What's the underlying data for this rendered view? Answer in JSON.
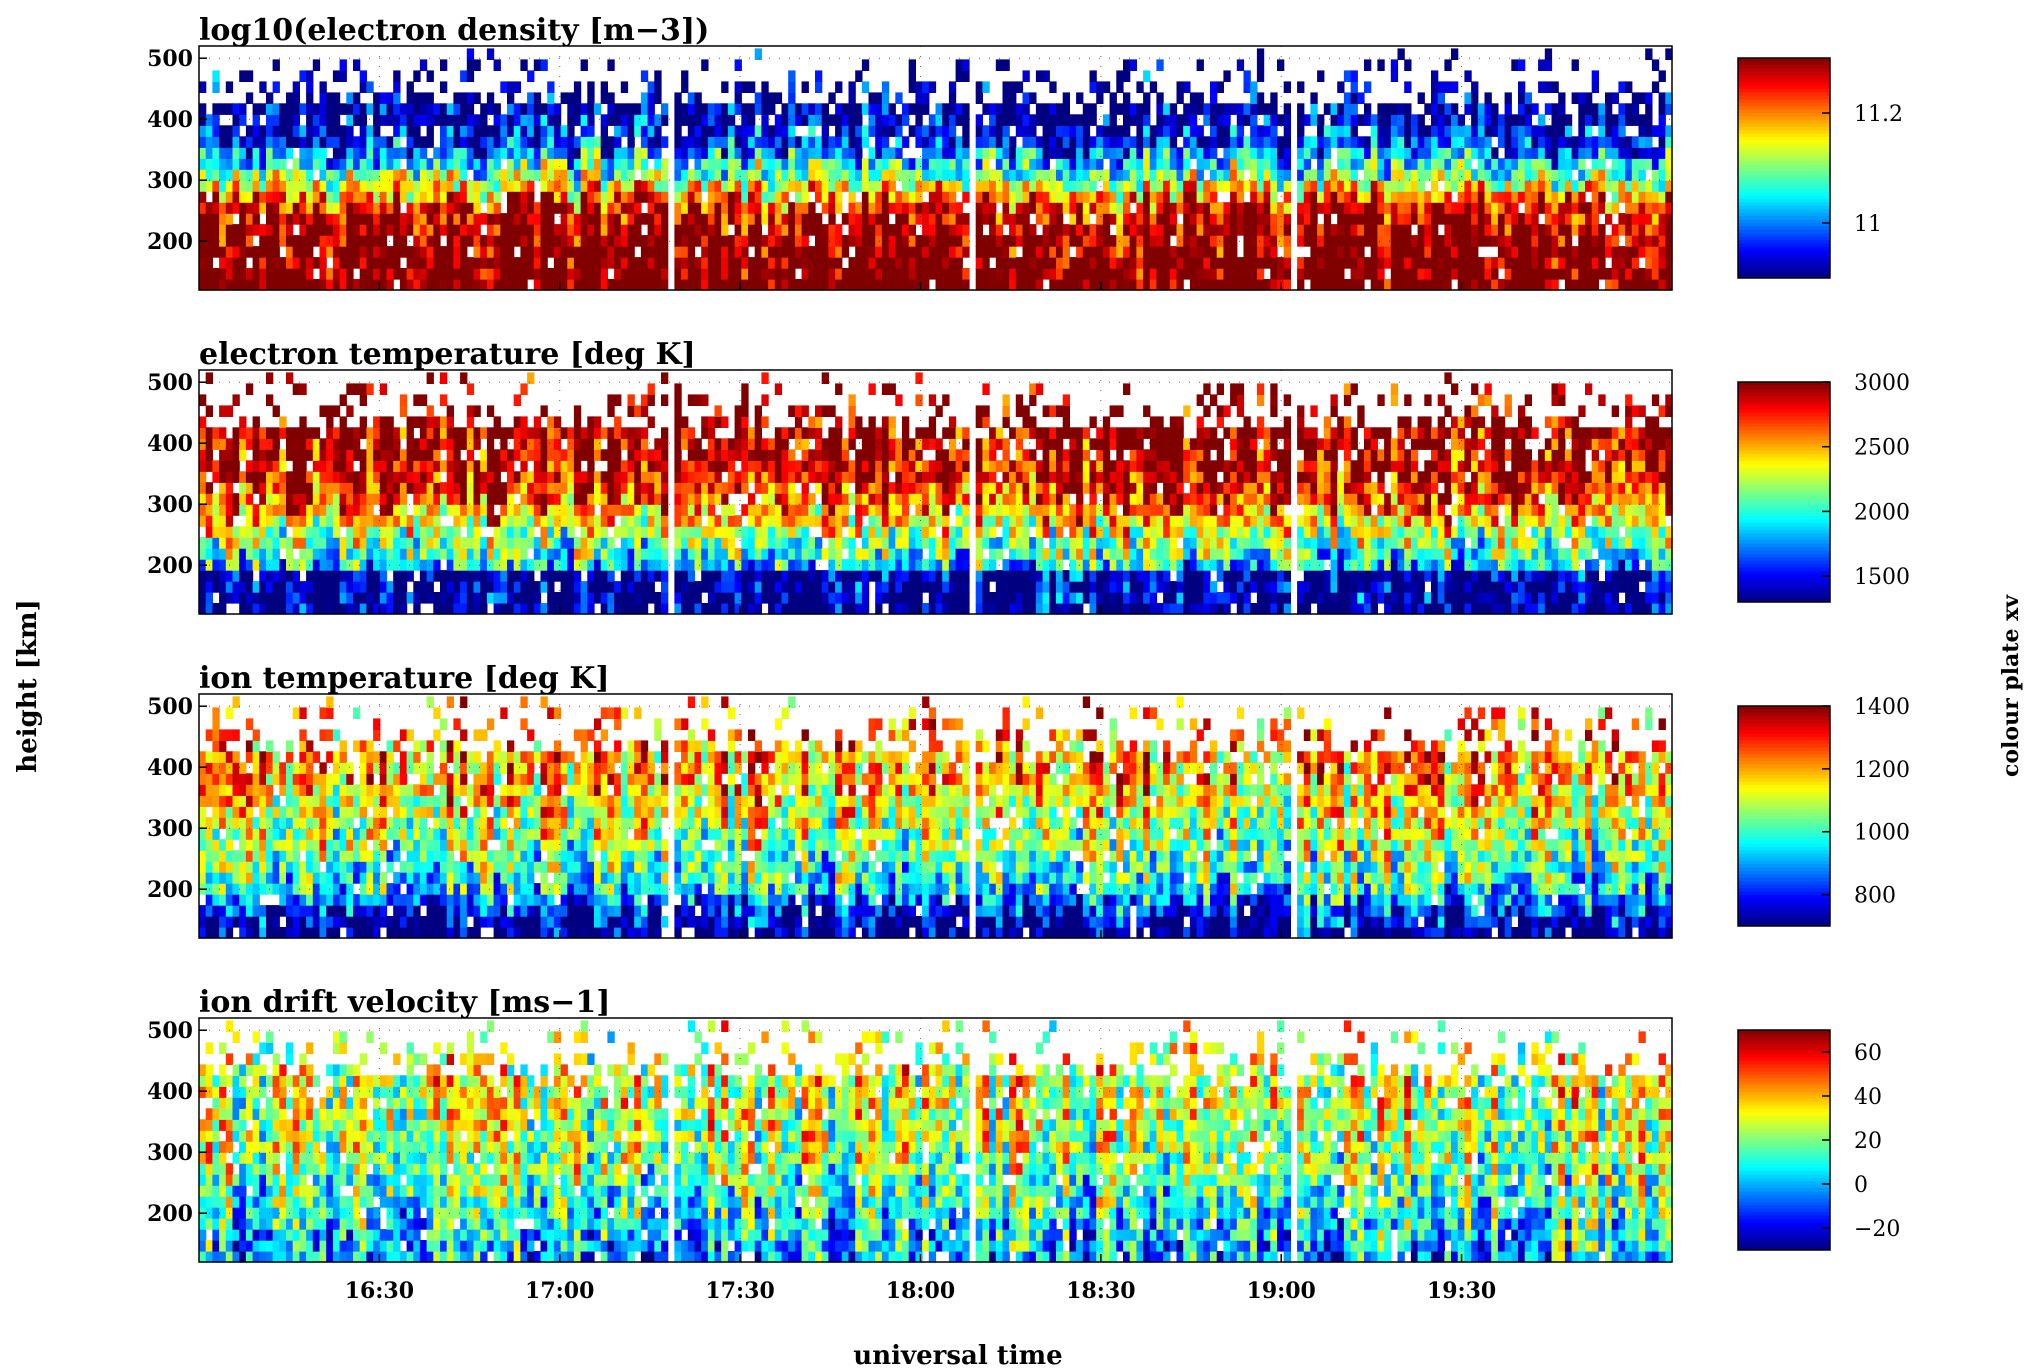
{
  "figure": {
    "ylabel": "height [km]",
    "xlabel": "universal time",
    "side_label": "colour plate xv",
    "colormap": "jet",
    "background": "#ffffff"
  },
  "chart_data": [
    {
      "type": "heatmap",
      "title": "log10(electron density [m−3])",
      "x_range": [
        "16:00",
        "20:05"
      ],
      "x_ticks": [
        "16:30",
        "17:00",
        "17:30",
        "18:00",
        "18:30",
        "19:00",
        "19:30"
      ],
      "y_range": [
        120,
        520
      ],
      "y_ticks": [
        "200",
        "300",
        "400",
        "500"
      ],
      "colorbar": {
        "range": [
          10.9,
          11.3
        ],
        "ticks": [
          "11",
          "11.2"
        ]
      },
      "profile": [
        [
          130,
          11.35
        ],
        [
          170,
          11.32
        ],
        [
          220,
          11.3
        ],
        [
          260,
          11.25
        ],
        [
          300,
          11.12
        ],
        [
          340,
          11.02
        ],
        [
          370,
          10.95
        ],
        [
          420,
          10.9
        ],
        [
          520,
          10.9
        ]
      ]
    },
    {
      "type": "heatmap",
      "title": "electron temperature [deg K]",
      "x_range": [
        "16:00",
        "20:05"
      ],
      "x_ticks": [
        "16:30",
        "17:00",
        "17:30",
        "18:00",
        "18:30",
        "19:00",
        "19:30"
      ],
      "y_range": [
        120,
        520
      ],
      "y_ticks": [
        "200",
        "300",
        "400",
        "500"
      ],
      "colorbar": {
        "range": [
          1300,
          3000
        ],
        "ticks": [
          "3000",
          "2500",
          "2000",
          "1500"
        ]
      },
      "profile": [
        [
          130,
          1300
        ],
        [
          190,
          1350
        ],
        [
          200,
          1900
        ],
        [
          250,
          2250
        ],
        [
          300,
          2650
        ],
        [
          350,
          2900
        ],
        [
          420,
          3000
        ],
        [
          520,
          3000
        ]
      ]
    },
    {
      "type": "heatmap",
      "title": "ion temperature [deg K]",
      "x_range": [
        "16:00",
        "20:05"
      ],
      "x_ticks": [
        "16:30",
        "17:00",
        "17:30",
        "18:00",
        "18:30",
        "19:00",
        "19:30"
      ],
      "y_range": [
        120,
        520
      ],
      "y_ticks": [
        "200",
        "300",
        "400",
        "500"
      ],
      "colorbar": {
        "range": [
          700,
          1400
        ],
        "ticks": [
          "1400",
          "1200",
          "1000",
          "800"
        ]
      },
      "profile": [
        [
          130,
          700
        ],
        [
          160,
          780
        ],
        [
          200,
          960
        ],
        [
          260,
          1050
        ],
        [
          320,
          1120
        ],
        [
          380,
          1200
        ],
        [
          450,
          1230
        ],
        [
          520,
          1250
        ]
      ]
    },
    {
      "type": "heatmap",
      "title": "ion drift velocity [ms−1]",
      "x_range": [
        "16:00",
        "20:05"
      ],
      "x_ticks": [
        "16:30",
        "17:00",
        "17:30",
        "18:00",
        "18:30",
        "19:00",
        "19:30"
      ],
      "y_range": [
        120,
        520
      ],
      "y_ticks": [
        "200",
        "300",
        "400",
        "500"
      ],
      "colorbar": {
        "range": [
          -30,
          70
        ],
        "ticks": [
          "60",
          "40",
          "20",
          "0",
          "−20"
        ]
      },
      "profile": [
        [
          130,
          0
        ],
        [
          200,
          10
        ],
        [
          300,
          25
        ],
        [
          400,
          30
        ],
        [
          520,
          30
        ]
      ]
    }
  ]
}
